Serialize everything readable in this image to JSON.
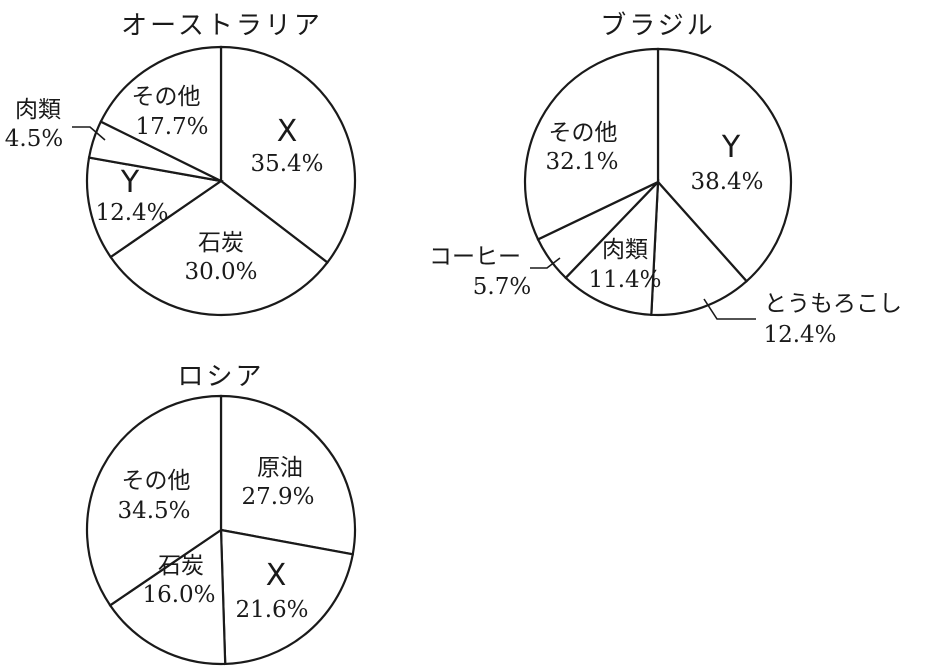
{
  "chart_data": [
    {
      "type": "pie",
      "title": "オーストラリア",
      "slices": [
        {
          "label": "X",
          "value": 35.4,
          "value_label": "35.4%"
        },
        {
          "label": "石炭",
          "value": 30.0,
          "value_label": "30.0%"
        },
        {
          "label": "Y",
          "value": 12.4,
          "value_label": "12.4%"
        },
        {
          "label": "肉類",
          "value": 4.5,
          "value_label": "4.5%"
        },
        {
          "label": "その他",
          "value": 17.7,
          "value_label": "17.7%"
        }
      ]
    },
    {
      "type": "pie",
      "title": "ブラジル",
      "slices": [
        {
          "label": "Y",
          "value": 38.4,
          "value_label": "38.4%"
        },
        {
          "label": "とうもろこし",
          "value": 12.4,
          "value_label": "12.4%"
        },
        {
          "label": "肉類",
          "value": 11.4,
          "value_label": "11.4%"
        },
        {
          "label": "コーヒー",
          "value": 5.7,
          "value_label": "5.7%"
        },
        {
          "label": "その他",
          "value": 32.1,
          "value_label": "32.1%"
        }
      ]
    },
    {
      "type": "pie",
      "title": "ロシア",
      "slices": [
        {
          "label": "原油",
          "value": 27.9,
          "value_label": "27.9%"
        },
        {
          "label": "X",
          "value": 21.6,
          "value_label": "21.6%"
        },
        {
          "label": "石炭",
          "value": 16.0,
          "value_label": "16.0%"
        },
        {
          "label": "その他",
          "value": 34.5,
          "value_label": "34.5%"
        }
      ]
    }
  ]
}
